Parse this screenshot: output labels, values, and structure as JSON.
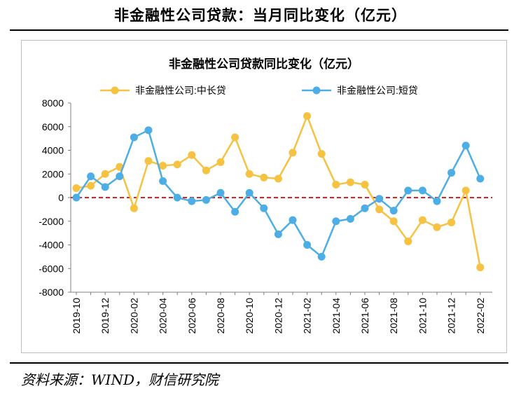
{
  "page": {
    "title": "非金融性公司贷款：当月同比变化（亿元）",
    "source": "资料来源：WIND，财信研究院"
  },
  "colors": {
    "series1": "#F5C242",
    "series2": "#4DAEE6",
    "zero_line": "#E02020",
    "axis": "#808080"
  },
  "chart_data": {
    "type": "line",
    "title": "非金融性公司贷款同比变化（亿元）",
    "legend_position": "top",
    "grid": false,
    "ylim": [
      -8000,
      8000
    ],
    "yticks": [
      8000,
      6000,
      4000,
      2000,
      0,
      -2000,
      -4000,
      -6000,
      -8000
    ],
    "x": [
      "2019-10",
      "2019-11",
      "2019-12",
      "2020-01",
      "2020-02",
      "2020-03",
      "2020-04",
      "2020-05",
      "2020-06",
      "2020-07",
      "2020-08",
      "2020-09",
      "2020-10",
      "2020-11",
      "2020-12",
      "2021-01",
      "2021-02",
      "2021-03",
      "2021-04",
      "2021-05",
      "2021-06",
      "2021-07",
      "2021-08",
      "2021-09",
      "2021-10",
      "2021-11",
      "2021-12",
      "2022-01",
      "2022-02"
    ],
    "xtick_labels": [
      "2019-10",
      "2019-12",
      "2020-02",
      "2020-04",
      "2020-06",
      "2020-08",
      "2020-10",
      "2020-12",
      "2021-02",
      "2021-04",
      "2021-06",
      "2021-08",
      "2021-10",
      "2021-12",
      "2022-02"
    ],
    "series": [
      {
        "name": "非金融性公司:中长贷",
        "values": [
          800,
          1000,
          2000,
          2600,
          -900,
          3100,
          2700,
          2800,
          3600,
          2300,
          3000,
          5100,
          2000,
          1700,
          1600,
          3800,
          6900,
          3700,
          1100,
          1300,
          1100,
          -1000,
          -2000,
          -3700,
          -1900,
          -2500,
          -2100,
          600,
          -5900
        ]
      },
      {
        "name": "非金融性公司:短贷",
        "values": [
          0,
          1800,
          900,
          1800,
          5100,
          5700,
          1400,
          0,
          -300,
          -200,
          400,
          -1200,
          400,
          -900,
          -3100,
          -1900,
          -4000,
          -5000,
          -2000,
          -1800,
          -900,
          -100,
          -1100,
          600,
          600,
          -300,
          2100,
          4400,
          1600
        ]
      }
    ]
  }
}
